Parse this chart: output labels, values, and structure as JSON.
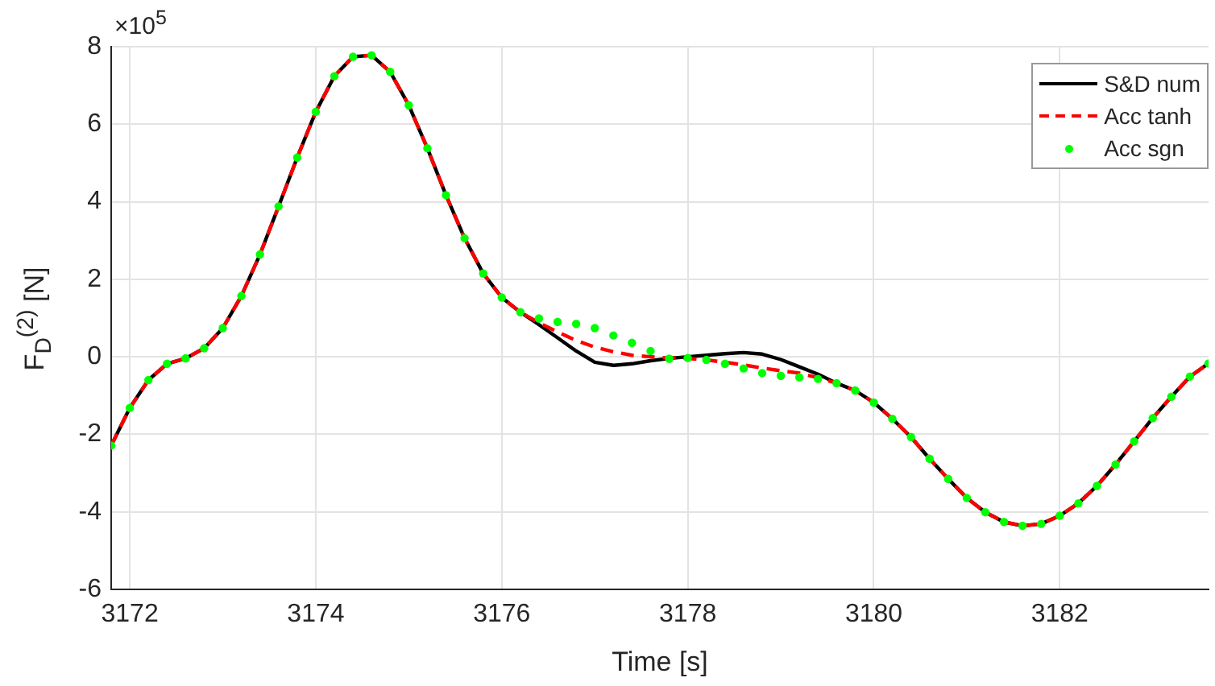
{
  "chart_data": {
    "type": "line",
    "xlabel": "Time [s]",
    "ylabel": "F$_{D}$$^{(2)}$ [N]",
    "annotations": [
      "×10$^{5}$"
    ],
    "x": [
      3171.8,
      3172.0,
      3172.2,
      3172.4,
      3172.6,
      3172.8,
      3173.0,
      3173.2,
      3173.4,
      3173.6,
      3173.8,
      3174.0,
      3174.2,
      3174.4,
      3174.6,
      3174.8,
      3175.0,
      3175.2,
      3175.4,
      3175.6,
      3175.8,
      3176.0,
      3176.2,
      3176.4,
      3176.6,
      3176.8,
      3177.0,
      3177.2,
      3177.4,
      3177.6,
      3177.8,
      3178.0,
      3178.2,
      3178.4,
      3178.6,
      3178.8,
      3179.0,
      3179.2,
      3179.4,
      3179.6,
      3179.8,
      3180.0,
      3180.2,
      3180.4,
      3180.6,
      3180.8,
      3181.0,
      3181.2,
      3181.4,
      3181.6,
      3181.8,
      3182.0,
      3182.2,
      3182.4,
      3182.6,
      3182.8,
      3183.0,
      3183.2,
      3183.4,
      3183.6
    ],
    "series": [
      {
        "name": "S&D num",
        "color": "#000000",
        "line_style": "solid",
        "marker": "none",
        "values": [
          -2.29,
          -1.32,
          -0.6,
          -0.18,
          -0.04,
          0.22,
          0.74,
          1.57,
          2.64,
          3.88,
          5.14,
          6.32,
          7.24,
          7.74,
          7.78,
          7.35,
          6.49,
          5.38,
          4.17,
          3.06,
          2.15,
          1.53,
          1.15,
          0.83,
          0.49,
          0.15,
          -0.14,
          -0.22,
          -0.18,
          -0.1,
          -0.04,
          0,
          0.04,
          0.08,
          0.11,
          0.07,
          -0.07,
          -0.26,
          -0.45,
          -0.68,
          -0.87,
          -1.18,
          -1.6,
          -2.07,
          -2.63,
          -3.15,
          -3.64,
          -4.01,
          -4.26,
          -4.36,
          -4.31,
          -4.1,
          -3.78,
          -3.33,
          -2.78,
          -2.18,
          -1.58,
          -1.03,
          -0.51,
          -0.17
        ]
      },
      {
        "name": "Acc tanh",
        "color": "#ff0000",
        "line_style": "dashed",
        "marker": "none",
        "values": [
          -2.29,
          -1.32,
          -0.6,
          -0.18,
          -0.04,
          0.22,
          0.74,
          1.57,
          2.64,
          3.88,
          5.14,
          6.32,
          7.24,
          7.74,
          7.78,
          7.35,
          6.49,
          5.38,
          4.17,
          3.06,
          2.15,
          1.53,
          1.15,
          0.88,
          0.64,
          0.42,
          0.25,
          0.13,
          0.04,
          0,
          -0.03,
          -0.04,
          -0.08,
          -0.14,
          -0.21,
          -0.29,
          -0.36,
          -0.42,
          -0.54,
          -0.68,
          -0.87,
          -1.18,
          -1.6,
          -2.07,
          -2.63,
          -3.15,
          -3.64,
          -4.01,
          -4.26,
          -4.36,
          -4.31,
          -4.1,
          -3.78,
          -3.33,
          -2.78,
          -2.18,
          -1.58,
          -1.03,
          -0.51,
          -0.17
        ]
      },
      {
        "name": "Acc sgn",
        "color": "#00ff00",
        "type": "scatter",
        "marker": "circle",
        "values": [
          -2.29,
          -1.32,
          -0.6,
          -0.18,
          -0.04,
          0.22,
          0.74,
          1.57,
          2.64,
          3.88,
          5.14,
          6.32,
          7.24,
          7.74,
          7.78,
          7.35,
          6.49,
          5.38,
          4.17,
          3.06,
          2.15,
          1.53,
          1.15,
          0.99,
          0.9,
          0.85,
          0.74,
          0.55,
          0.36,
          0.15,
          -0.05,
          -0.03,
          -0.08,
          -0.18,
          -0.3,
          -0.42,
          -0.49,
          -0.53,
          -0.57,
          -0.68,
          -0.87,
          -1.18,
          -1.6,
          -2.07,
          -2.63,
          -3.15,
          -3.64,
          -4.01,
          -4.26,
          -4.36,
          -4.31,
          -4.1,
          -3.78,
          -3.33,
          -2.78,
          -2.18,
          -1.58,
          -1.03,
          -0.51,
          -0.17
        ]
      }
    ],
    "xlim": [
      3171.8,
      3183.6
    ],
    "xticks": [
      3172,
      3174,
      3176,
      3178,
      3180,
      3182
    ],
    "ylim": [
      -6,
      8
    ],
    "yticks": [
      -6,
      -4,
      -2,
      0,
      2,
      4,
      6,
      8
    ],
    "grid": true,
    "legend": "top right"
  }
}
